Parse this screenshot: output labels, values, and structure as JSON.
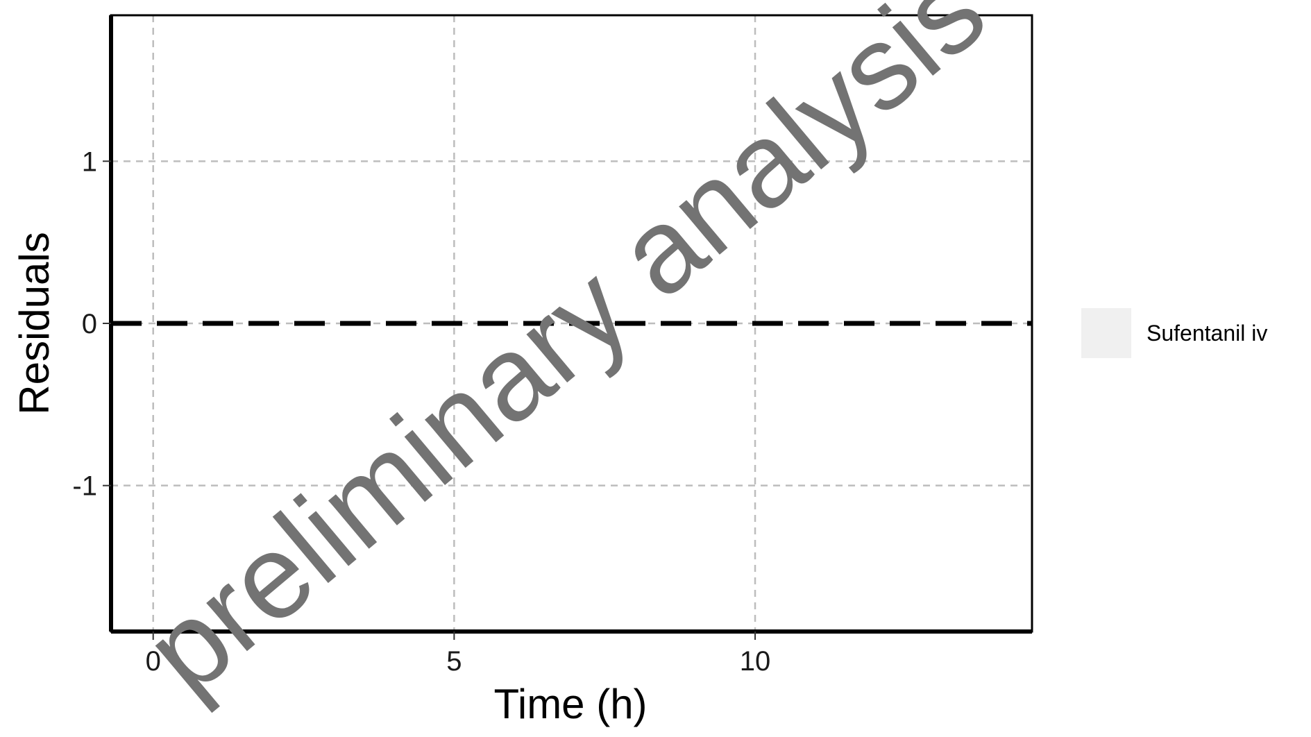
{
  "chart_data": {
    "type": "scatter",
    "title": "",
    "xlabel": "Time (h)",
    "ylabel": "Residuals",
    "xlim": [
      -0.7,
      14.6
    ],
    "ylim": [
      -1.9,
      1.9
    ],
    "x_ticks": [
      {
        "value": 0,
        "label": "0"
      },
      {
        "value": 5,
        "label": "5"
      },
      {
        "value": 10,
        "label": "10"
      }
    ],
    "y_ticks": [
      {
        "value": 1,
        "label": "1"
      },
      {
        "value": 0,
        "label": "0"
      },
      {
        "value": -1,
        "label": "-1"
      }
    ],
    "grid": true,
    "reference_line": {
      "y": 0,
      "style": "dashed",
      "color": "#000000"
    },
    "series": [
      {
        "name": "Sufentanil iv",
        "values": [],
        "color": "#f0f0f0"
      }
    ],
    "legend_position": "right",
    "watermark": "preliminary analysis"
  }
}
